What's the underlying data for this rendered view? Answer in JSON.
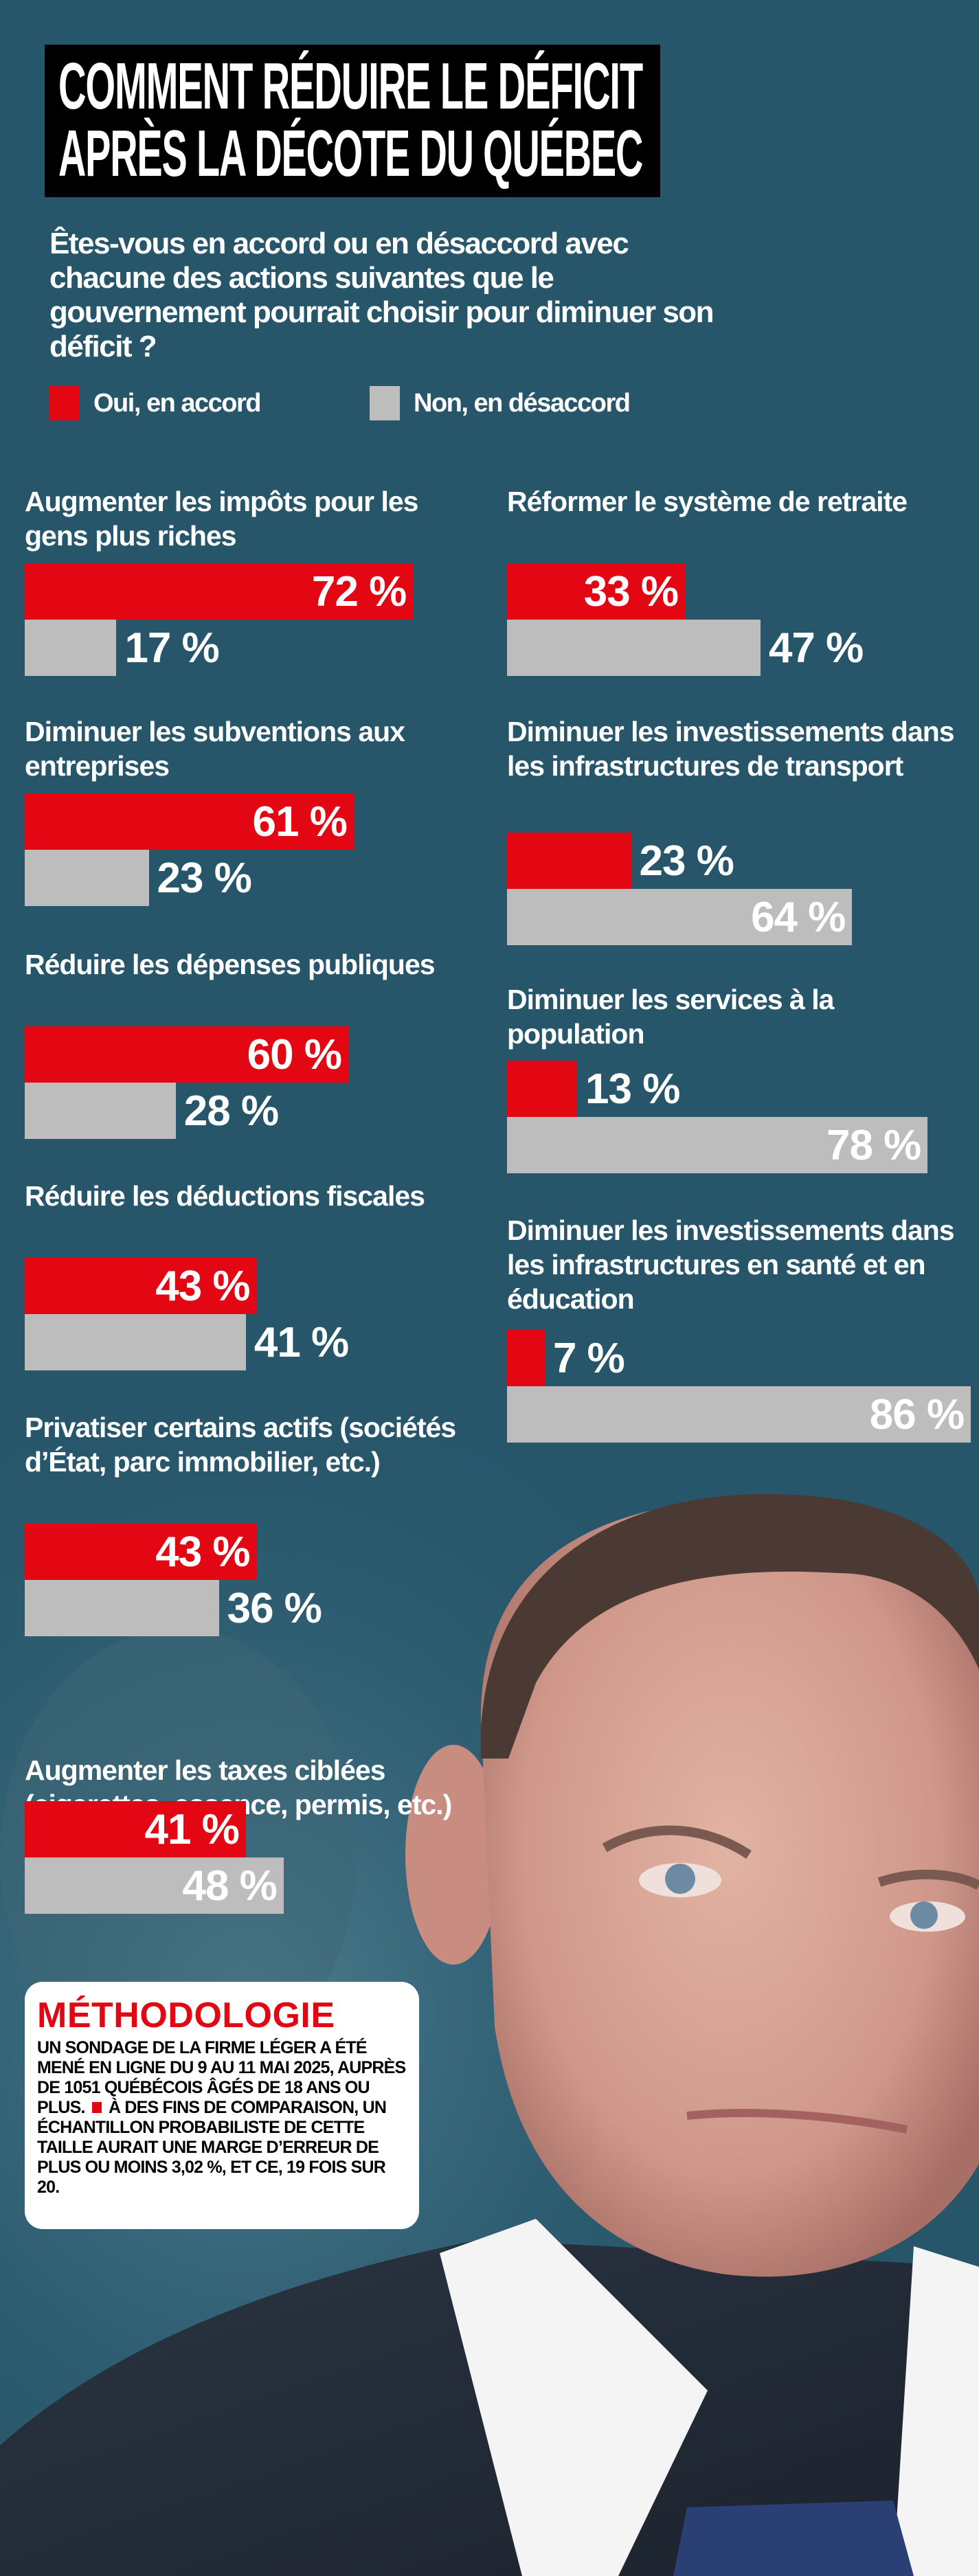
{
  "title": {
    "line1": "COMMENT RÉDUIRE LE DÉFICIT",
    "line2": "APRÈS LA DÉCOTE DU QUÉBEC"
  },
  "question": "Êtes-vous en accord ou en désaccord avec chacune des actions suivantes que le gouvernement pourrait choisir pour diminuer son déficit ?",
  "legend": [
    {
      "label": "Oui, en accord",
      "color": "#e30613"
    },
    {
      "label": "Non, en désaccord",
      "color": "#bdbdbd"
    }
  ],
  "chart_data": {
    "type": "bar",
    "orientation": "horizontal",
    "unit": "%",
    "series_names": [
      "Oui, en accord",
      "Non, en désaccord"
    ],
    "colors": {
      "yes": "#e30613",
      "no": "#bdbdbd"
    },
    "items": [
      {
        "label": "Augmenter les impôts pour les gens plus riches",
        "yes": 72,
        "no": 17,
        "yes_text": "72 %",
        "no_text": "17 %"
      },
      {
        "label": "Diminuer les subventions aux entreprises",
        "yes": 61,
        "no": 23,
        "yes_text": "61 %",
        "no_text": "23 %"
      },
      {
        "label": "Réduire les dépenses publiques",
        "yes": 60,
        "no": 28,
        "yes_text": "60 %",
        "no_text": "28 %"
      },
      {
        "label": "Réduire les déductions fiscales",
        "yes": 43,
        "no": 41,
        "yes_text": "43 %",
        "no_text": "41 %"
      },
      {
        "label": "Privatiser certains actifs (sociétés d’État, parc immobilier, etc.)",
        "yes": 43,
        "no": 36,
        "yes_text": "43 %",
        "no_text": "36 %"
      },
      {
        "label": "Augmenter les taxes ciblées (cigarettes, essence, permis, etc.)",
        "yes": 41,
        "no": 48,
        "yes_text": "41 %",
        "no_text": "48 %"
      },
      {
        "label": "Réformer le système de retraite",
        "yes": 33,
        "no": 47,
        "yes_text": "33 %",
        "no_text": "47 %"
      },
      {
        "label": "Diminuer les investissements dans les infrastructures de transport",
        "yes": 23,
        "no": 64,
        "yes_text": "23 %",
        "no_text": "64 %"
      },
      {
        "label": "Diminuer les services à la population",
        "yes": 13,
        "no": 78,
        "yes_text": "13 %",
        "no_text": "78 %"
      },
      {
        "label": "Diminuer les investissements dans les infrastructures en santé et en éducation",
        "yes": 7,
        "no": 86,
        "yes_text": "7 %",
        "no_text": "86 %"
      }
    ]
  },
  "methodology": {
    "title": "MÉTHODOLOGIE",
    "text_part1": "UN SONDAGE DE LA FIRME LÉGER A ÉTÉ MENÉ EN LIGNE DU 9 AU 11 MAI 2025, AUPRÈS DE 1051 QUÉBÉCOIS ÂGÉS DE 18 ANS OU PLUS.",
    "text_part2": "À DES FINS DE COMPARAISON, UN ÉCHANTILLON PROBABILISTE DE CETTE TAILLE AURAIT UNE MARGE D’ERREUR DE PLUS OU MOINS 3,02 %, ET CE, 19 FOIS SUR 20."
  },
  "colors": {
    "background": "#27566b",
    "accent": "#e30613",
    "grey": "#bdbdbd"
  }
}
